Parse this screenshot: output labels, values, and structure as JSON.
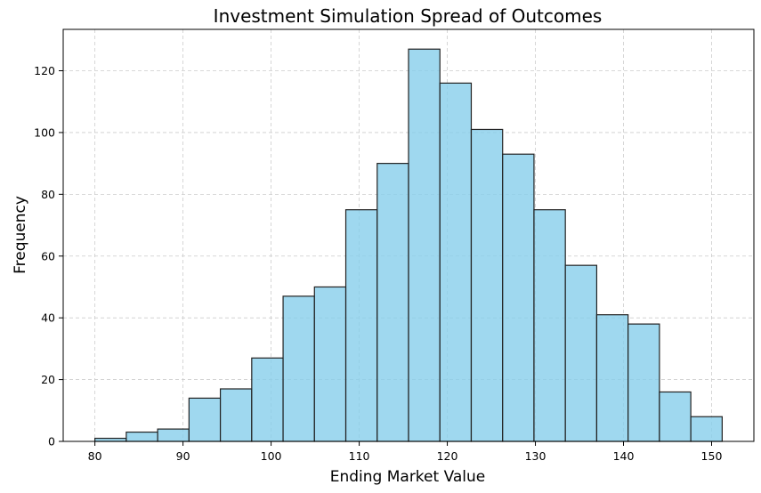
{
  "chart_data": {
    "type": "bar",
    "title": "Investment Simulation Spread of Outcomes",
    "xlabel": "Ending Market Value",
    "ylabel": "Frequency",
    "bins": [
      [
        80.0,
        83.56
      ],
      [
        83.56,
        87.12
      ],
      [
        87.12,
        90.68
      ],
      [
        90.68,
        94.24
      ],
      [
        94.24,
        97.8
      ],
      [
        97.8,
        101.36
      ],
      [
        101.36,
        104.92
      ],
      [
        104.92,
        108.48
      ],
      [
        108.48,
        112.04
      ],
      [
        112.04,
        115.6
      ],
      [
        115.6,
        119.16
      ],
      [
        119.16,
        122.72
      ],
      [
        122.72,
        126.28
      ],
      [
        126.28,
        129.84
      ],
      [
        129.84,
        133.4
      ],
      [
        133.4,
        136.96
      ],
      [
        136.96,
        140.52
      ],
      [
        140.52,
        144.08
      ],
      [
        144.08,
        147.64
      ],
      [
        147.64,
        151.2
      ]
    ],
    "values": [
      1,
      3,
      4,
      14,
      17,
      27,
      47,
      50,
      75,
      90,
      127,
      116,
      101,
      93,
      75,
      57,
      41,
      38,
      16,
      8
    ],
    "xlim": [
      76.4,
      154.8
    ],
    "ylim": [
      0,
      133.4
    ],
    "xticks": [
      80,
      90,
      100,
      110,
      120,
      130,
      140,
      150
    ],
    "yticks": [
      0,
      20,
      40,
      60,
      80,
      100,
      120
    ],
    "grid": true,
    "colors": {
      "bar_fill": "#87CEEB",
      "bar_edge": "#222222",
      "grid": "#cccccc"
    }
  }
}
